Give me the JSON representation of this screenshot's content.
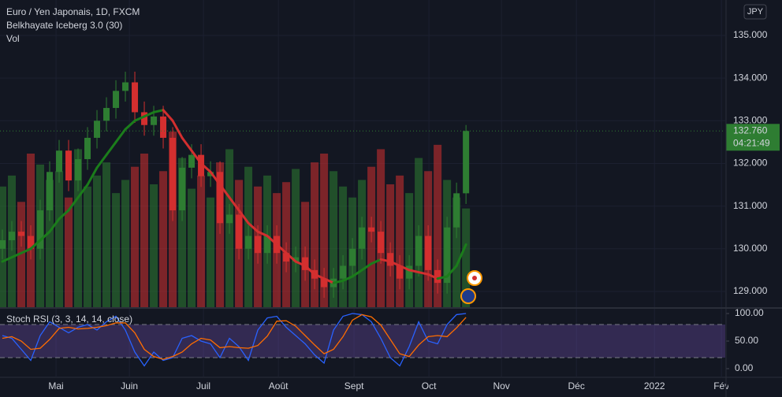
{
  "chart_data": [
    {
      "type": "candlestick",
      "title": "Euro / Yen Japonais, 1D, FXCM",
      "currency": "JPY",
      "up_color": "#2e7d32",
      "down_color": "#d32f2f",
      "open": [
        130.0,
        130.2,
        130.4,
        130.3,
        130.0,
        130.9,
        131.8,
        132.3,
        131.6,
        132.1,
        132.6,
        133.0,
        133.3,
        133.7,
        133.9,
        133.2,
        132.9,
        133.1,
        132.6,
        130.9,
        131.9,
        132.2,
        131.7,
        131.8,
        130.6,
        130.8,
        130.0,
        130.3,
        129.9,
        130.3,
        129.9,
        129.7,
        129.8,
        129.5,
        129.3,
        129.1,
        129.3,
        129.6,
        130.0,
        130.5,
        130.4,
        129.9,
        129.6,
        129.3,
        129.6,
        130.3,
        129.5,
        129.2,
        130.5,
        131.3
      ],
      "high": [
        130.45,
        130.65,
        130.65,
        130.55,
        131.15,
        132.05,
        132.55,
        132.55,
        132.35,
        132.85,
        133.25,
        133.55,
        133.95,
        134.15,
        134.15,
        133.45,
        133.35,
        133.35,
        132.85,
        132.15,
        132.45,
        132.45,
        132.05,
        132.05,
        131.05,
        131.05,
        130.55,
        130.55,
        130.55,
        130.55,
        130.15,
        130.05,
        130.05,
        129.75,
        129.55,
        129.55,
        129.85,
        130.25,
        130.75,
        130.75,
        130.65,
        130.15,
        129.85,
        129.85,
        130.55,
        130.55,
        129.75,
        130.75,
        131.55,
        132.9
      ],
      "low": [
        129.75,
        129.95,
        130.05,
        129.75,
        129.75,
        130.65,
        131.55,
        131.35,
        131.35,
        131.85,
        132.35,
        132.75,
        133.05,
        133.45,
        132.95,
        132.65,
        132.65,
        132.35,
        130.65,
        130.65,
        131.65,
        131.45,
        131.45,
        130.35,
        130.35,
        129.75,
        129.75,
        129.65,
        129.65,
        129.65,
        129.45,
        129.45,
        129.25,
        129.05,
        128.85,
        128.85,
        129.05,
        129.35,
        129.75,
        130.15,
        129.65,
        129.35,
        129.05,
        129.05,
        129.35,
        129.25,
        128.95,
        128.95,
        130.25,
        131.05
      ],
      "close": [
        130.2,
        130.4,
        130.3,
        130.0,
        130.9,
        131.8,
        132.3,
        131.6,
        132.1,
        132.6,
        133.0,
        133.3,
        133.7,
        133.9,
        133.2,
        132.9,
        133.1,
        132.6,
        130.9,
        131.9,
        132.2,
        131.7,
        131.8,
        130.6,
        130.8,
        130.0,
        130.3,
        129.9,
        130.3,
        129.9,
        129.7,
        129.8,
        129.5,
        129.3,
        129.1,
        129.3,
        129.6,
        130.0,
        130.5,
        130.4,
        129.9,
        129.6,
        129.3,
        129.6,
        130.3,
        129.5,
        129.2,
        130.5,
        131.3,
        132.76
      ],
      "xlim": [
        -0.25,
        76.4
      ],
      "xticks": [
        {
          "value": 5.67,
          "label": "Mai"
        },
        {
          "value": 13.42,
          "label": "Juin"
        },
        {
          "value": 21.25,
          "label": "Juil"
        },
        {
          "value": 29.17,
          "label": "Août"
        },
        {
          "value": 37.17,
          "label": "Sept"
        },
        {
          "value": 45.08,
          "label": "Oct"
        },
        {
          "value": 52.75,
          "label": "Nov"
        },
        {
          "value": 60.67,
          "label": "Déc"
        },
        {
          "value": 68.92,
          "label": "2022"
        },
        {
          "value": 76.0,
          "label": "Fév"
        }
      ],
      "ylim": [
        128.63,
        135.83
      ],
      "yticks": [
        {
          "value": 129,
          "label": "129.000"
        },
        {
          "value": 130,
          "label": "130.000"
        },
        {
          "value": 131,
          "label": "131.000"
        },
        {
          "value": 132,
          "label": "132.000"
        },
        {
          "value": 133,
          "label": "133.000"
        },
        {
          "value": 134,
          "label": "134.000"
        },
        {
          "value": 135,
          "label": "135.000"
        }
      ],
      "last_price": {
        "value": 132.76,
        "label": "132.760"
      },
      "countdown": "04:21:49",
      "series": [
        {
          "name": "Belkhayate Iceberg 3.0 (30)",
          "up_color": "#1b7d1b",
          "down_color": "#d32f2f",
          "values": [
            129.7,
            129.8,
            129.9,
            130.0,
            130.2,
            130.4,
            130.7,
            130.9,
            131.2,
            131.5,
            131.9,
            132.2,
            132.5,
            132.8,
            133.0,
            133.1,
            133.2,
            133.25,
            133.0,
            132.6,
            132.3,
            132.0,
            131.8,
            131.5,
            131.2,
            130.9,
            130.6,
            130.4,
            130.3,
            130.1,
            129.9,
            129.7,
            129.6,
            129.4,
            129.3,
            129.2,
            129.25,
            129.35,
            129.5,
            129.65,
            129.75,
            129.7,
            129.6,
            129.5,
            129.45,
            129.4,
            129.3,
            129.35,
            129.6,
            130.1
          ]
        }
      ],
      "volume": {
        "name": "Vol",
        "ylim": [
          0,
          140
        ],
        "values": [
          55,
          60,
          48,
          70,
          65,
          58,
          62,
          50,
          72,
          55,
          60,
          66,
          52,
          58,
          64,
          70,
          56,
          62,
          80,
          68,
          54,
          60,
          50,
          66,
          72,
          58,
          64,
          55,
          60,
          52,
          57,
          63,
          48,
          66,
          70,
          62,
          55,
          50,
          58,
          64,
          72,
          56,
          60,
          52,
          68,
          62,
          74,
          58,
          50,
          45
        ]
      }
    },
    {
      "type": "line",
      "title": "Stoch RSI (3, 3, 14, 14, close)",
      "ylim": [
        -14.3,
        108.6
      ],
      "yticks": [
        {
          "value": 0,
          "label": "0.00"
        },
        {
          "value": 50,
          "label": "50.00"
        },
        {
          "value": 100,
          "label": "100.00"
        }
      ],
      "bands": [
        20,
        80
      ],
      "band_color": "#7e57c2",
      "series": [
        {
          "color": "#2962ff",
          "values": [
            60,
            55,
            35,
            15,
            60,
            85,
            75,
            65,
            75,
            80,
            70,
            85,
            95,
            70,
            30,
            5,
            30,
            15,
            20,
            55,
            60,
            50,
            45,
            20,
            55,
            40,
            15,
            70,
            92,
            95,
            75,
            60,
            45,
            25,
            10,
            70,
            95,
            100,
            98,
            85,
            55,
            20,
            5,
            40,
            85,
            50,
            45,
            80,
            98,
            100
          ]
        },
        {
          "color": "#ff6d00",
          "values": [
            55,
            58,
            50,
            35,
            37,
            53,
            73,
            75,
            72,
            73,
            75,
            78,
            83,
            83,
            65,
            35,
            22,
            17,
            22,
            30,
            45,
            55,
            52,
            38,
            40,
            38,
            37,
            42,
            59,
            86,
            87,
            77,
            60,
            43,
            27,
            35,
            58,
            88,
            98,
            94,
            79,
            53,
            27,
            22,
            43,
            58,
            60,
            58,
            74,
            93
          ]
        }
      ]
    }
  ]
}
